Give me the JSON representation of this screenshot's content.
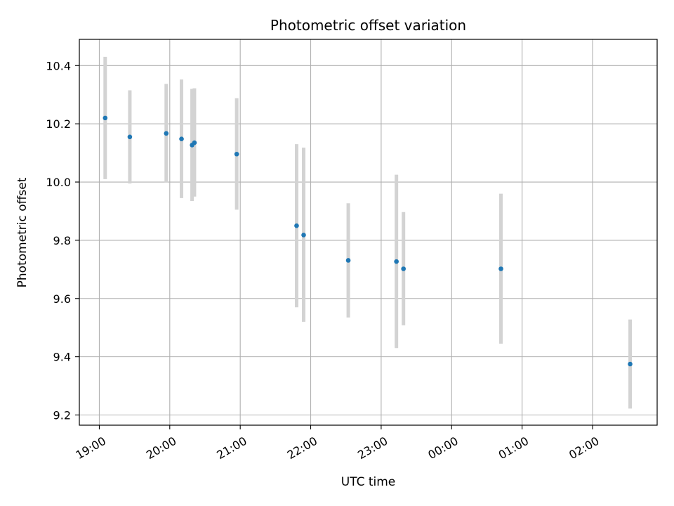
{
  "chart_data": {
    "type": "scatter",
    "title": "Photometric offset variation",
    "xlabel": "UTC time",
    "ylabel": "Photometric offset",
    "x_tick_labels": [
      "19:00",
      "20:00",
      "21:00",
      "22:00",
      "23:00",
      "00:00",
      "01:00",
      "02:00"
    ],
    "x_tick_hours": [
      19,
      20,
      21,
      22,
      23,
      24,
      25,
      26
    ],
    "y_ticks": [
      9.2,
      9.4,
      9.6,
      9.8,
      10.0,
      10.2,
      10.4
    ],
    "y_tick_labels": [
      "9.2",
      "9.4",
      "9.6",
      "9.8",
      "10.0",
      "10.2",
      "10.4"
    ],
    "xlim": [
      "18:43",
      "02:55"
    ],
    "ylim": [
      9.165,
      10.49
    ],
    "grid": true,
    "point_color": "#1f77b4",
    "errorbar_color": "#d3d3d3",
    "points": [
      {
        "time": "19:05",
        "value": 10.22,
        "low": 10.01,
        "high": 10.43
      },
      {
        "time": "19:26",
        "value": 10.155,
        "low": 9.995,
        "high": 10.315
      },
      {
        "time": "19:57",
        "value": 10.167,
        "low": 9.998,
        "high": 10.337
      },
      {
        "time": "20:10",
        "value": 10.148,
        "low": 9.945,
        "high": 10.352
      },
      {
        "time": "20:19",
        "value": 10.127,
        "low": 9.935,
        "high": 10.32
      },
      {
        "time": "20:21",
        "value": 10.135,
        "low": 9.95,
        "high": 10.322
      },
      {
        "time": "20:57",
        "value": 10.096,
        "low": 9.905,
        "high": 10.288
      },
      {
        "time": "21:48",
        "value": 9.85,
        "low": 9.57,
        "high": 10.13
      },
      {
        "time": "21:54",
        "value": 9.818,
        "low": 9.52,
        "high": 10.118
      },
      {
        "time": "22:32",
        "value": 9.731,
        "low": 9.535,
        "high": 9.927
      },
      {
        "time": "23:13",
        "value": 9.727,
        "low": 9.43,
        "high": 10.025
      },
      {
        "time": "23:19",
        "value": 9.702,
        "low": 9.508,
        "high": 9.897
      },
      {
        "time": "00:42",
        "value": 9.702,
        "low": 9.445,
        "high": 9.96
      },
      {
        "time": "02:32",
        "value": 9.375,
        "low": 9.222,
        "high": 9.528
      }
    ]
  }
}
